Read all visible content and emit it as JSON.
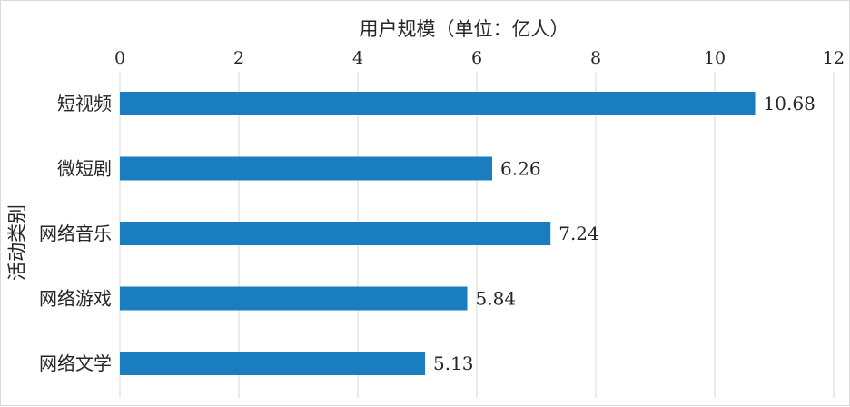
{
  "chart_data": {
    "type": "bar",
    "orientation": "horizontal",
    "title": "",
    "xlabel": "用户规模（单位：亿人）",
    "ylabel": "活动类别",
    "xaxis_position": "top",
    "xlim": [
      0,
      12
    ],
    "xticks": [
      0,
      2,
      4,
      6,
      8,
      10,
      12
    ],
    "grid": "vertical",
    "legend": "none",
    "categories": [
      "短视频",
      "微短剧",
      "网络音乐",
      "网络游戏",
      "网络文学"
    ],
    "values": [
      10.68,
      6.26,
      7.24,
      5.84,
      5.13
    ],
    "data_labels": [
      "10.68",
      "6.26",
      "7.24",
      "5.84",
      "5.13"
    ],
    "colors": {
      "bar": "#1a7dc0",
      "grid": "#d9d9d9",
      "text": "#262626"
    }
  }
}
